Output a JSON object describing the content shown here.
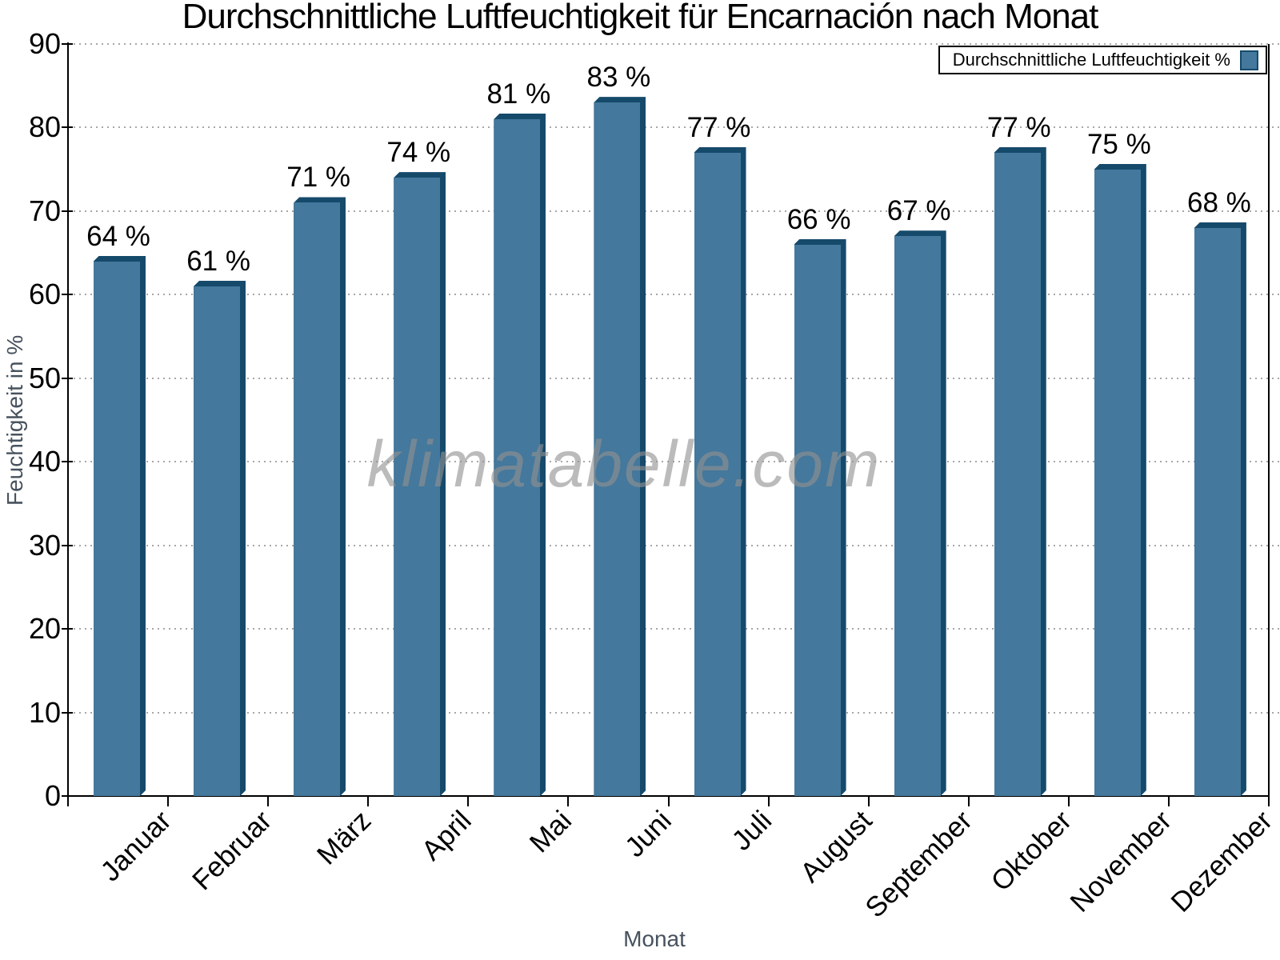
{
  "chart_data": {
    "type": "bar",
    "title": "Durchschnittliche Luftfeuchtigkeit für Encarnación nach Monat",
    "xlabel": "Monat",
    "ylabel": "Feuchtigkeit in %",
    "watermark": "klimatabelle.com",
    "categories": [
      "Januar",
      "Februar",
      "März",
      "April",
      "Mai",
      "Juni",
      "Juli",
      "August",
      "September",
      "Oktober",
      "November",
      "Dezember"
    ],
    "values": [
      64,
      61,
      71,
      74,
      81,
      83,
      77,
      66,
      67,
      77,
      75,
      68
    ],
    "value_suffix": " %",
    "ylim": [
      0,
      90
    ],
    "ytick_interval": 10,
    "grid": "dotted-horizontal",
    "legend": {
      "label": "Durchschnittliche Luftfeuchtigkeit %",
      "position": "top-right"
    },
    "colors": {
      "bar_face": "#44789C",
      "bar_edge": "#164A6B",
      "grid": "#A8A8A8",
      "axis": "#000000",
      "axis_title": "#47525E",
      "text": "#000000",
      "watermark_gray": "#919191",
      "background": "#FFFFFF"
    }
  }
}
